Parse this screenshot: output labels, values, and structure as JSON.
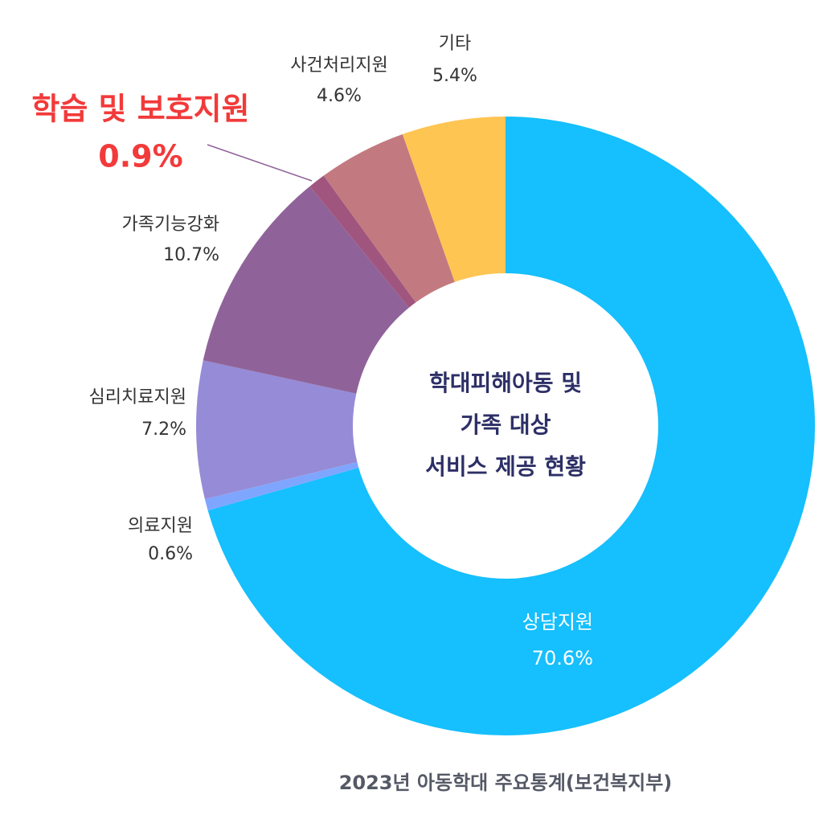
{
  "chart_data": {
    "type": "donut",
    "center_text": [
      "학대피해아동 및",
      "가족 대상",
      "서비스 제공 현황"
    ],
    "source": "2023년 아동학대 주요통계(보건복지부)",
    "categories": [
      "상담지원",
      "의료지원",
      "심리치료지원",
      "가족기능강화",
      "학습 및 보호지원",
      "사건처리지원",
      "기타"
    ],
    "values": [
      70.6,
      0.6,
      7.2,
      10.7,
      0.9,
      4.6,
      5.4
    ],
    "value_labels": [
      "70.6%",
      "0.6%",
      "7.2%",
      "10.7%",
      "0.9%",
      "4.6%",
      "5.4%"
    ],
    "colors": [
      "#16bffd",
      "#7fa6ff",
      "#968bd6",
      "#8f6399",
      "#a0557f",
      "#c27a80",
      "#ffc553"
    ]
  }
}
